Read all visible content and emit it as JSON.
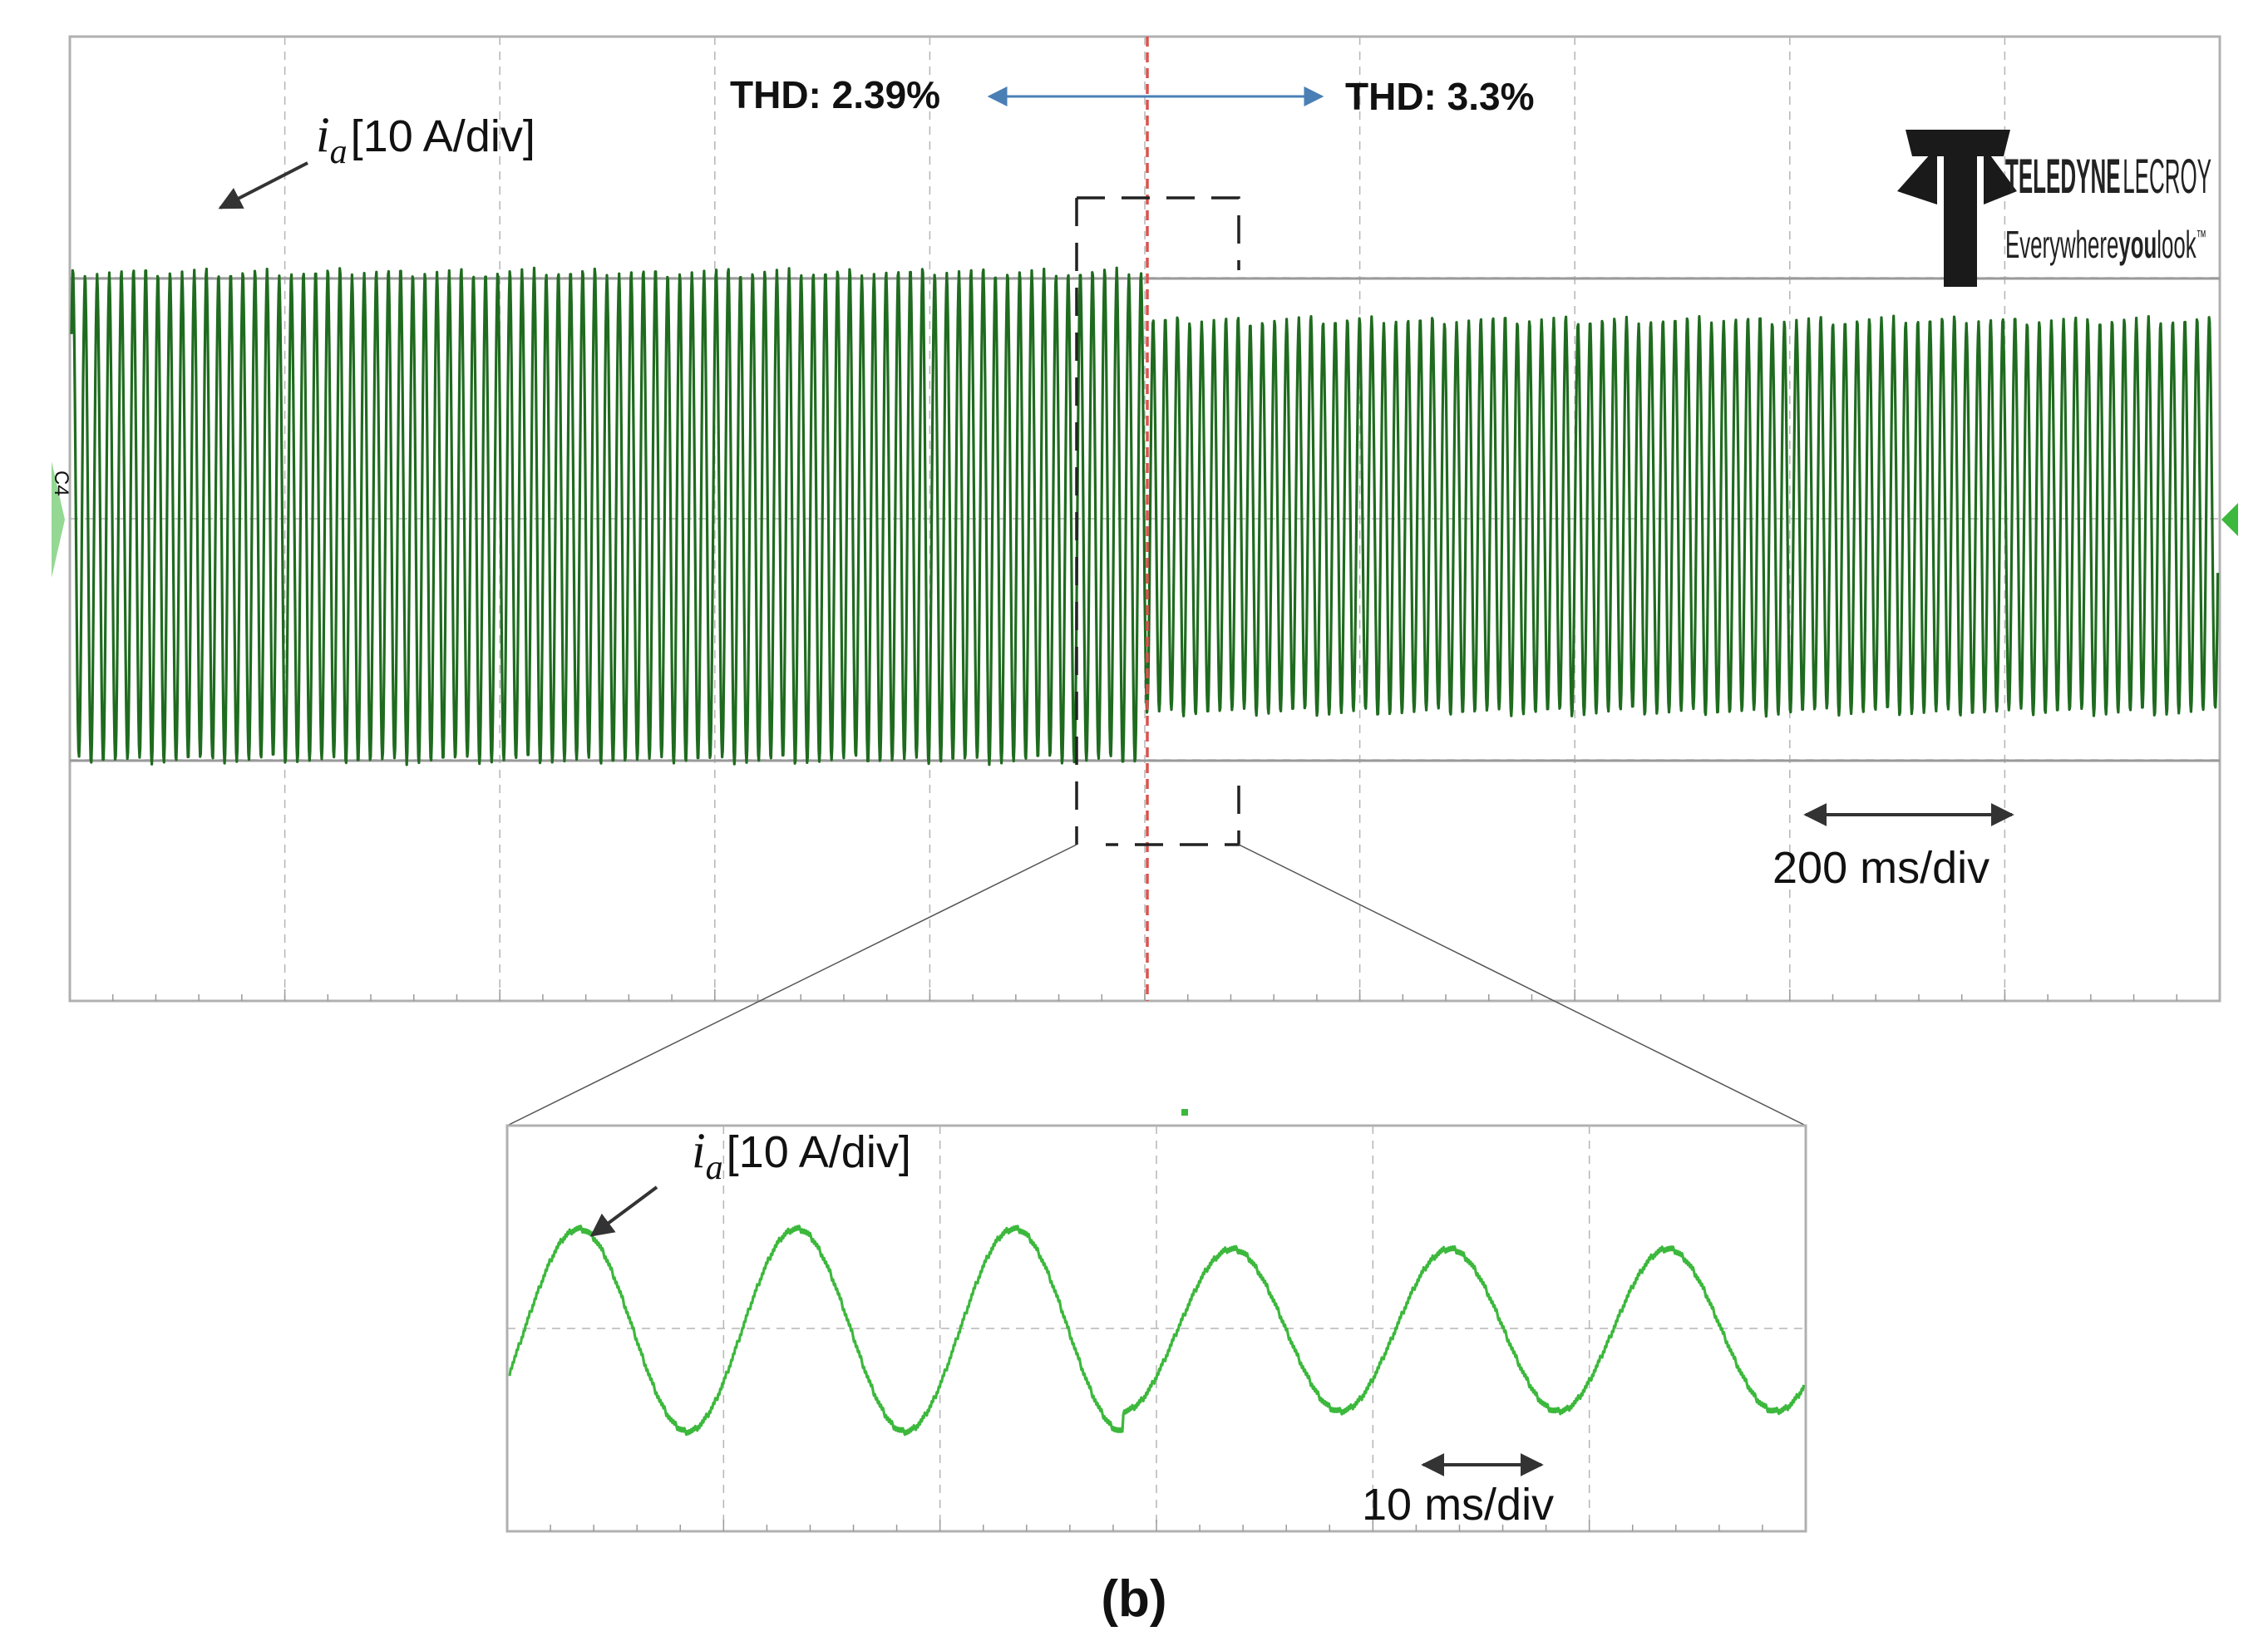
{
  "chart_data": [
    {
      "type": "line",
      "panel": "overview",
      "annotations": {
        "signal_symbol": "i",
        "signal_subscript": "a",
        "signal_scale": "[10 A/div]",
        "thd_before": "THD: 2.39%",
        "thd_after": "THD: 3.3%",
        "time_scale": "200 ms/div",
        "channel_marker": "C4"
      },
      "grid": true,
      "divisions": {
        "horizontal": 10,
        "vertical": 4
      },
      "series": [
        {
          "color": "#1f6b1f",
          "segments": [
            {
              "x_range_div": [
                0,
                5
              ],
              "amplitude_div": 1.0
            },
            {
              "x_range_div": [
                5,
                10
              ],
              "amplitude_div": 0.8
            }
          ]
        }
      ],
      "event_marker_div": 5,
      "event_marker_color": "#d9534f"
    },
    {
      "type": "line",
      "panel": "zoom",
      "annotations": {
        "signal_symbol": "i",
        "signal_subscript": "a",
        "signal_scale": "[10 A/div]",
        "time_scale": "10 ms/div"
      },
      "grid": true,
      "divisions": {
        "horizontal": 6,
        "vertical": 2
      },
      "series": [
        {
          "color": "#3cb83c",
          "cycles_before": 3,
          "cycles_after": 3,
          "amplitude_before_div": 1.0,
          "amplitude_after_div": 0.8
        }
      ]
    }
  ],
  "logo": {
    "brand": "TELEDYNE LECROY",
    "brand_main": "TELEDYNE",
    "brand_sub": "LECROY",
    "tagline_a": "Everywhere",
    "tagline_b": "you",
    "tagline_c": "look",
    "tagline_tm": "™"
  },
  "caption": "(b)",
  "colors": {
    "trace_dark": "#1f6b1f",
    "trace_light": "#3cb83c",
    "event_line": "#d9534f",
    "thd_arrow": "#4a7fb5",
    "grid": "#b5b5b5",
    "frame": "#b0b0b0"
  }
}
